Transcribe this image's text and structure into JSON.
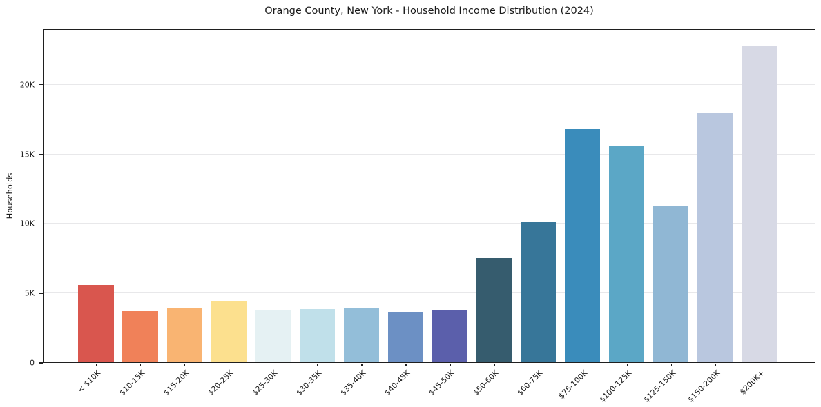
{
  "chart_data": {
    "type": "bar",
    "title": "Orange County, New York - Household Income Distribution (2024)",
    "xlabel": "",
    "ylabel": "Households",
    "categories": [
      "< $10K",
      "$10-15K",
      "$15-20K",
      "$20-25K",
      "$25-30K",
      "$30-35K",
      "$35-40K",
      "$40-45K",
      "$45-50K",
      "$50-60K",
      "$60-75K",
      "$75-100K",
      "$100-125K",
      "$125-150K",
      "$150-200K",
      "$200K+"
    ],
    "values": [
      5560,
      3680,
      3880,
      4430,
      3730,
      3810,
      3930,
      3640,
      3720,
      7520,
      10110,
      16820,
      15620,
      11320,
      17960,
      22790
    ],
    "bar_colors": [
      "#d9564e",
      "#f08159",
      "#f9b472",
      "#fce08e",
      "#e5f1f3",
      "#c0e0ea",
      "#93bed9",
      "#6c90c4",
      "#5b5fab",
      "#365c6e",
      "#377699",
      "#3a8cbb",
      "#5ba7c6",
      "#90b7d4",
      "#b9c7df",
      "#d7d9e5"
    ],
    "ylim": [
      0,
      24000
    ],
    "yticks": [
      {
        "value": 0,
        "label": "0"
      },
      {
        "value": 5000,
        "label": "5K"
      },
      {
        "value": 10000,
        "label": "10K"
      },
      {
        "value": 15000,
        "label": "15K"
      },
      {
        "value": 20000,
        "label": "20K"
      }
    ],
    "grid": "horizontal",
    "legend": "none",
    "background": "#ffffff"
  }
}
